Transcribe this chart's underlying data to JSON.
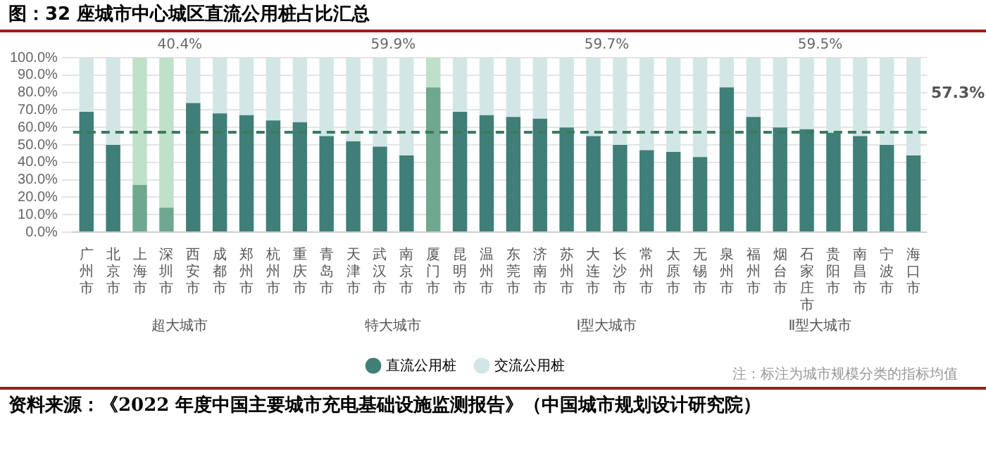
{
  "chart_data": {
    "type": "bar",
    "title": "图：32 座城市中心城区直流公用桩占比汇总",
    "categories": [
      "广州市",
      "北京市",
      "上海市",
      "深圳市",
      "西安市",
      "成都市",
      "郑州市",
      "杭州市",
      "重庆市",
      "青岛市",
      "天津市",
      "武汉市",
      "南京市",
      "厦门市",
      "昆明市",
      "温州市",
      "东莞市",
      "济南市",
      "苏州市",
      "大连市",
      "长沙市",
      "常州市",
      "太原市",
      "无锡市",
      "泉州市",
      "福州市",
      "烟台市",
      "石家庄市",
      "贵阳市",
      "南昌市",
      "宁波市",
      "海口市"
    ],
    "stacked": true,
    "series": [
      {
        "name": "直流公用桩",
        "color": "#3f7f77",
        "colors": [
          "#3f7f77",
          "#3f7f77",
          "#6fa88f",
          "#6fa88f",
          "#3f7f77",
          "#3f7f77",
          "#3f7f77",
          "#3f7f77",
          "#3f7f77",
          "#3f7f77",
          "#3f7f77",
          "#3f7f77",
          "#3f7f77",
          "#6fa88f",
          "#3f7f77",
          "#3f7f77",
          "#3f7f77",
          "#3f7f77",
          "#3f7f77",
          "#3f7f77",
          "#3f7f77",
          "#3f7f77",
          "#3f7f77",
          "#3f7f77",
          "#3f7f77",
          "#3f7f77",
          "#3f7f77",
          "#3f7f77",
          "#3f7f77",
          "#3f7f77",
          "#3f7f77",
          "#3f7f77"
        ],
        "values": [
          69,
          50,
          27,
          14,
          74,
          68,
          67,
          64,
          63,
          55,
          52,
          49,
          44,
          83,
          69,
          67,
          66,
          65,
          60,
          55,
          50,
          47,
          46,
          43,
          83,
          66,
          60,
          59,
          57,
          55,
          50,
          44
        ]
      },
      {
        "name": "交流公用桩",
        "color": "#d3e6e6",
        "colors": [
          "#d3e6e6",
          "#d3e6e6",
          "#bfe0c9",
          "#bfe0c9",
          "#d3e6e6",
          "#d3e6e6",
          "#d3e6e6",
          "#d3e6e6",
          "#d3e6e6",
          "#d3e6e6",
          "#d3e6e6",
          "#d3e6e6",
          "#d3e6e6",
          "#bfe0c9",
          "#d3e6e6",
          "#d3e6e6",
          "#d3e6e6",
          "#d3e6e6",
          "#d3e6e6",
          "#d3e6e6",
          "#d3e6e6",
          "#d3e6e6",
          "#d3e6e6",
          "#d3e6e6",
          "#d3e6e6",
          "#d3e6e6",
          "#d3e6e6",
          "#d3e6e6",
          "#d3e6e6",
          "#d3e6e6",
          "#d3e6e6",
          "#d3e6e6"
        ],
        "values": [
          31,
          50,
          73,
          86,
          26,
          32,
          33,
          36,
          37,
          45,
          48,
          51,
          56,
          17,
          31,
          33,
          34,
          35,
          40,
          45,
          50,
          53,
          54,
          57,
          17,
          34,
          40,
          41,
          43,
          45,
          50,
          56
        ]
      }
    ],
    "ylim": [
      0,
      100
    ],
    "yticks": [
      {
        "value": 0,
        "label": "0.0%"
      },
      {
        "value": 10,
        "label": "10.0%"
      },
      {
        "value": 20,
        "label": "20.0%"
      },
      {
        "value": 30,
        "label": "30.0%"
      },
      {
        "value": 40,
        "label": "40.0%"
      },
      {
        "value": 50,
        "label": "50.0%"
      },
      {
        "value": 60,
        "label": "60.0%"
      },
      {
        "value": 70,
        "label": "70.0%"
      },
      {
        "value": 80,
        "label": "80.0%"
      },
      {
        "value": 90,
        "label": "90.0%"
      },
      {
        "value": 100,
        "label": "100.0%"
      }
    ],
    "grid": "y",
    "legend": "bottom",
    "ref_lines": [
      {
        "axis": "y",
        "value": 57.3,
        "label": "57.3%",
        "color": "#3b7a5e",
        "line_style": "dashed"
      }
    ],
    "annotations": [
      "40.4%",
      "59.9%",
      "59.7%",
      "59.5%",
      "超大城市",
      "特大城市",
      "Ⅰ型大城市",
      "Ⅱ型大城市",
      "注：标注为城市规模分类的指标均值",
      "资料来源：《2022 年度中国主要城市充电基础设施监测报告》（中国城市规划设计研究院）"
    ]
  }
}
